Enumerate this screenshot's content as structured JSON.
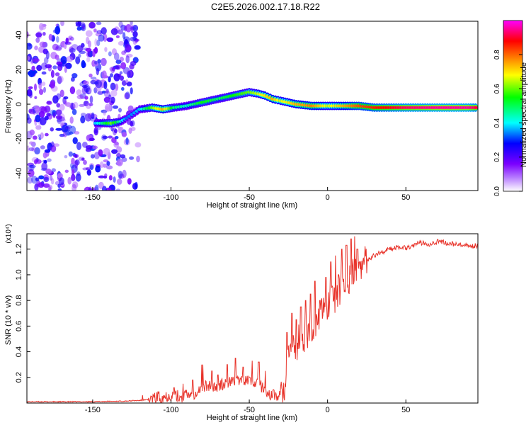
{
  "title": "C2E5.2026.002.17.18.R22",
  "chart_data": [
    {
      "type": "heatmap",
      "xlabel": "Height of straight line (km)",
      "ylabel": "Frequency (Hz)",
      "xlim": [
        -192,
        96
      ],
      "ylim": [
        -50,
        48
      ],
      "xticks": [
        -150,
        -100,
        -50,
        0,
        50
      ],
      "yticks": [
        -40,
        -20,
        0,
        20,
        40
      ],
      "grid": false,
      "colorbar": {
        "label": "Normalized spectral amplitude",
        "range": [
          0,
          1
        ],
        "ticks": [
          0.0,
          0.2,
          0.4,
          0.6,
          0.8
        ],
        "tick_labels": [
          "0.0",
          "0.2",
          "0.4",
          "0.6",
          "0.8"
        ],
        "colormap": [
          "#ffffff",
          "#7b00ff",
          "#0000ff",
          "#00ffff",
          "#00ff00",
          "#ffff00",
          "#ff8000",
          "#ff0000",
          "#ff00ff"
        ]
      },
      "ridge": {
        "x": [
          -148,
          -138,
          -132,
          -128,
          -120,
          -112,
          -105,
          -98,
          -90,
          -80,
          -70,
          -60,
          -50,
          -44,
          -40,
          -35,
          -30,
          -20,
          -10,
          0,
          10,
          20,
          30,
          50,
          70,
          90,
          96
        ],
        "frequency": [
          -11,
          -11,
          -10,
          -8,
          -3,
          -2,
          -3,
          -2,
          -1,
          1,
          3,
          5,
          7,
          6,
          5,
          3,
          2,
          0,
          -1,
          -1,
          -1,
          -1,
          -2,
          -2,
          -2,
          -2,
          -2
        ],
        "amplitude": [
          0.35,
          0.55,
          0.4,
          0.3,
          0.35,
          0.55,
          0.7,
          0.45,
          0.4,
          0.5,
          0.45,
          0.5,
          0.55,
          0.6,
          0.65,
          0.7,
          0.6,
          0.7,
          0.75,
          0.6,
          0.7,
          0.8,
          0.85,
          0.92,
          0.95,
          0.95,
          0.9
        ]
      }
    },
    {
      "type": "line",
      "xlabel": "Height of straight line (km)",
      "ylabel": "SNR (10 * v/v)",
      "y_multiplier": "(x10⁴)",
      "xlim": [
        -192,
        96
      ],
      "ylim": [
        0,
        1.32
      ],
      "xticks": [
        -150,
        -100,
        -50,
        0,
        50
      ],
      "yticks": [
        0.2,
        0.4,
        0.6,
        0.8,
        1.0,
        1.2
      ],
      "grid": false,
      "color": "#e8332a",
      "series": [
        {
          "x": [
            -192,
            -170,
            -150,
            -130,
            -120,
            -112,
            -105,
            -100,
            -95,
            -90,
            -85,
            -80,
            -75,
            -70,
            -65,
            -60,
            -55,
            -50,
            -45,
            -42,
            -40,
            -35,
            -30,
            -27,
            -25,
            -22,
            -20,
            -18,
            -15,
            -12,
            -10,
            -8,
            -5,
            -2,
            0,
            3,
            5,
            8,
            10,
            13,
            15,
            18,
            20,
            25,
            30,
            35,
            40,
            45,
            50,
            55,
            60,
            65,
            70,
            75,
            80,
            85,
            90,
            96
          ],
          "y": [
            0.01,
            0.01,
            0.01,
            0.015,
            0.02,
            0.03,
            0.05,
            0.06,
            0.05,
            0.06,
            0.08,
            0.12,
            0.14,
            0.13,
            0.15,
            0.17,
            0.16,
            0.18,
            0.16,
            0.13,
            0.09,
            0.06,
            0.05,
            0.12,
            0.35,
            0.45,
            0.42,
            0.52,
            0.5,
            0.55,
            0.55,
            0.62,
            0.68,
            0.72,
            0.75,
            0.8,
            0.82,
            0.86,
            0.9,
            0.95,
            1.0,
            1.02,
            1.06,
            1.12,
            1.15,
            1.18,
            1.2,
            1.22,
            1.21,
            1.23,
            1.25,
            1.24,
            1.26,
            1.25,
            1.24,
            1.23,
            1.22,
            1.23
          ]
        }
      ],
      "peaks": {
        "x": [
          -118,
          -108,
          -98,
          -92,
          -86,
          -80,
          -74,
          -70,
          -64,
          -59,
          -54,
          -48,
          -44,
          -40,
          -26,
          -23,
          -20,
          -17,
          -14,
          -11,
          -8,
          -5,
          -1,
          2,
          5,
          7,
          9,
          12,
          15,
          17,
          19,
          22
        ],
        "y": [
          0.06,
          0.09,
          0.12,
          0.15,
          0.18,
          0.3,
          0.25,
          0.22,
          0.3,
          0.35,
          0.28,
          0.33,
          0.32,
          0.25,
          0.55,
          0.7,
          0.65,
          0.75,
          0.8,
          0.85,
          0.95,
          0.8,
          0.98,
          1.1,
          1.15,
          1.0,
          1.2,
          1.23,
          1.28,
          1.3,
          1.2,
          1.18
        ]
      }
    }
  ]
}
